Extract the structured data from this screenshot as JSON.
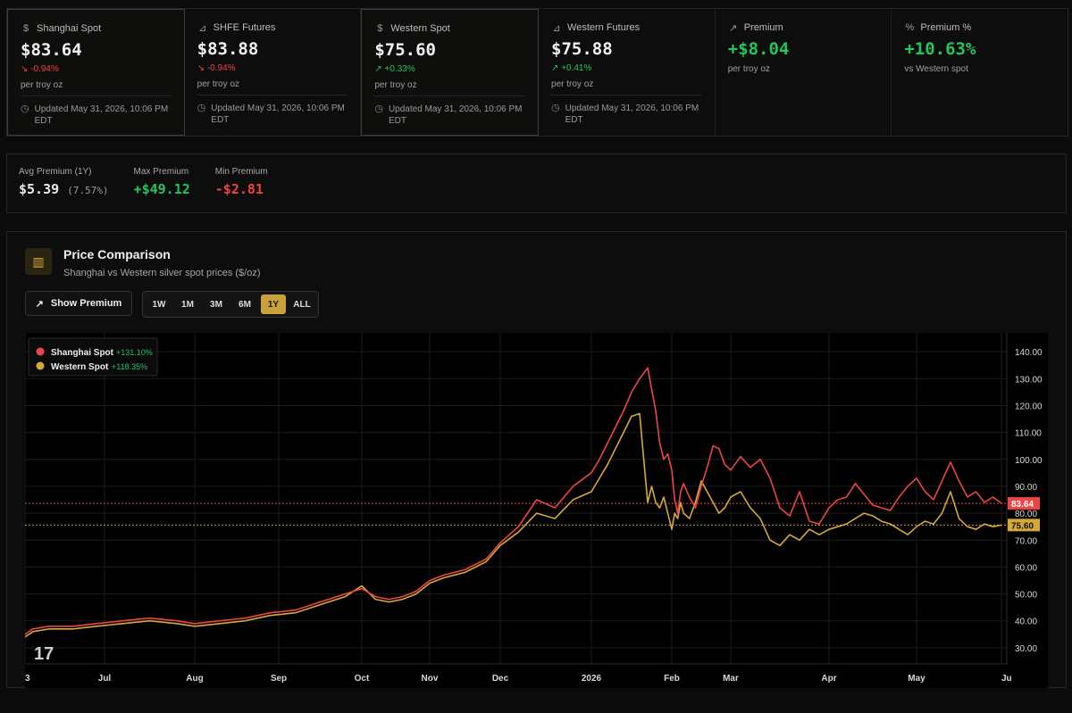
{
  "cards": [
    {
      "icon": "dollar-icon",
      "glyph": "$",
      "title": "Shanghai Spot",
      "value": "$83.64",
      "change": "-0.94%",
      "dir": "down",
      "unit": "per troy oz",
      "updated": "Updated May 31, 2026, 10:06 PM EDT"
    },
    {
      "icon": "chart-line-icon",
      "glyph": "⌞",
      "title": "SHFE Futures",
      "value": "$83.88",
      "change": "-0.94%",
      "dir": "down",
      "unit": "per troy oz",
      "updated": "Updated May 31, 2026, 10:06 PM EDT"
    },
    {
      "icon": "dollar-icon",
      "glyph": "$",
      "title": "Western Spot",
      "value": "$75.60",
      "change": "+0.33%",
      "dir": "up",
      "unit": "per troy oz",
      "updated": "Updated May 31, 2026, 10:06 PM EDT"
    },
    {
      "icon": "chart-line-icon",
      "glyph": "⌞",
      "title": "Western Futures",
      "value": "$75.88",
      "change": "+0.41%",
      "dir": "up",
      "unit": "per troy oz",
      "updated": "Updated May 31, 2026, 10:06 PM EDT"
    },
    {
      "icon": "trending-up-icon",
      "glyph": "↗",
      "title": "Premium",
      "value": "+$8.04",
      "unit": "per troy oz"
    },
    {
      "icon": "percent-icon",
      "glyph": "%",
      "title": "Premium %",
      "value": "+10.63%",
      "unit": "vs Western spot"
    }
  ],
  "stats": {
    "avg_label": "Avg Premium (1Y)",
    "avg_value": "$5.39",
    "avg_pct": "(7.57%)",
    "max_label": "Max Premium",
    "max_value": "+$49.12",
    "min_label": "Min Premium",
    "min_value": "-$2.81"
  },
  "panel": {
    "title": "Price Comparison",
    "subtitle": "Shanghai vs Western silver spot prices ($/oz)",
    "show_premium": "Show Premium",
    "ranges": [
      "1W",
      "1M",
      "3M",
      "6M",
      "1Y",
      "ALL"
    ],
    "active_range": "1Y"
  },
  "colors": {
    "shanghai": "#ef4444",
    "western": "#d4a93a",
    "green": "#22c55e",
    "red": "#ef4444"
  },
  "chart_data": {
    "type": "line",
    "x_ticks": [
      "3",
      "Jul",
      "Aug",
      "Sep",
      "Oct",
      "Nov",
      "Dec",
      "2026",
      "Feb",
      "Mar",
      "Apr",
      "May",
      "Ju"
    ],
    "y_ticks": [
      "140.00",
      "130.00",
      "120.00",
      "110.00",
      "100.00",
      "90.00",
      "80.00",
      "70.00",
      "60.00",
      "50.00",
      "40.00",
      "30.00"
    ],
    "ylim": [
      24,
      147
    ],
    "legend": [
      {
        "name": "Shanghai Spot",
        "change": "+131.10%"
      },
      {
        "name": "Western Spot",
        "change": "+118.35%"
      }
    ],
    "last_labels": {
      "shanghai": "83.64",
      "western": "75.60"
    },
    "x_index_of_ticks": [
      0,
      1,
      2,
      3,
      4,
      5,
      6,
      7,
      8,
      9,
      10,
      11,
      12
    ],
    "series": [
      {
        "name": "Shanghai Spot",
        "x": [
          0,
          0.1,
          0.3,
          0.6,
          0.9,
          1.2,
          1.5,
          1.8,
          2.0,
          2.3,
          2.6,
          2.9,
          3.2,
          3.5,
          3.8,
          4.0,
          4.2,
          4.4,
          4.6,
          4.8,
          5.0,
          5.2,
          5.5,
          5.8,
          6.0,
          6.2,
          6.4,
          6.6,
          6.8,
          7.0,
          7.1,
          7.2,
          7.3,
          7.4,
          7.5,
          7.6,
          7.7,
          7.75,
          7.8,
          7.85,
          7.9,
          7.95,
          8.0,
          8.05,
          8.1,
          8.15,
          8.2,
          8.3,
          8.4,
          8.5,
          8.6,
          8.7,
          8.8,
          8.9,
          9.0,
          9.1,
          9.2,
          9.3,
          9.4,
          9.5,
          9.6,
          9.7,
          9.8,
          9.9,
          10.0,
          10.1,
          10.2,
          10.3,
          10.4,
          10.5,
          10.6,
          10.7,
          10.8,
          10.9,
          11.0,
          11.1,
          11.2,
          11.3,
          11.4,
          11.5,
          11.6,
          11.7,
          11.8,
          11.9,
          12.0
        ],
        "values": [
          35,
          37,
          38,
          38,
          39,
          40,
          41,
          40,
          39,
          40,
          41,
          43,
          44,
          47,
          50,
          52,
          49,
          48,
          49,
          51,
          55,
          57,
          59,
          63,
          69,
          75,
          85,
          82,
          90,
          95,
          100,
          106,
          112,
          118,
          125,
          130,
          134,
          126,
          118,
          106,
          100,
          102,
          96,
          85,
          80,
          88,
          91,
          86,
          82,
          90,
          97,
          105,
          104,
          98,
          96,
          101,
          97,
          100,
          93,
          82,
          79,
          88,
          77,
          76,
          82,
          85,
          86,
          91,
          87,
          83,
          82,
          81,
          86,
          90,
          93,
          88,
          85,
          92,
          99,
          92,
          86,
          88,
          84,
          86,
          83.64
        ],
        "note": "x is in month-tick units (0=Jun 3 .. 12=Jun 1 2026)"
      },
      {
        "name": "Western Spot",
        "x": [
          0,
          0.1,
          0.3,
          0.6,
          0.9,
          1.2,
          1.5,
          1.8,
          2.0,
          2.3,
          2.6,
          2.9,
          3.2,
          3.5,
          3.8,
          4.0,
          4.2,
          4.4,
          4.6,
          4.8,
          5.0,
          5.2,
          5.5,
          5.8,
          6.0,
          6.2,
          6.4,
          6.6,
          6.8,
          7.0,
          7.1,
          7.2,
          7.3,
          7.4,
          7.5,
          7.6,
          7.7,
          7.75,
          7.8,
          7.85,
          7.9,
          7.95,
          8.0,
          8.05,
          8.1,
          8.15,
          8.2,
          8.3,
          8.4,
          8.5,
          8.6,
          8.7,
          8.8,
          8.9,
          9.0,
          9.1,
          9.2,
          9.3,
          9.4,
          9.5,
          9.6,
          9.7,
          9.8,
          9.9,
          10.0,
          10.1,
          10.2,
          10.3,
          10.4,
          10.5,
          10.6,
          10.7,
          10.8,
          10.9,
          11.0,
          11.1,
          11.2,
          11.3,
          11.4,
          11.5,
          11.6,
          11.7,
          11.8,
          11.9,
          12.0
        ],
        "values": [
          34,
          36,
          37,
          37,
          38,
          39,
          40,
          39,
          38,
          39,
          40,
          42,
          43,
          46,
          49,
          53,
          48,
          47,
          48,
          50,
          54,
          56,
          58,
          62,
          68,
          73,
          80,
          78,
          85,
          88,
          93,
          98,
          104,
          110,
          116,
          117,
          84,
          90,
          84,
          82,
          86,
          80,
          74,
          80,
          78,
          84,
          80,
          78,
          84,
          92,
          88,
          84,
          80,
          82,
          86,
          88,
          82,
          78,
          70,
          68,
          72,
          70,
          74,
          72,
          74,
          75,
          76,
          78,
          80,
          79,
          77,
          76,
          74,
          72,
          75,
          77,
          76,
          80,
          88,
          78,
          75,
          74,
          76,
          75,
          75.6
        ]
      }
    ]
  }
}
